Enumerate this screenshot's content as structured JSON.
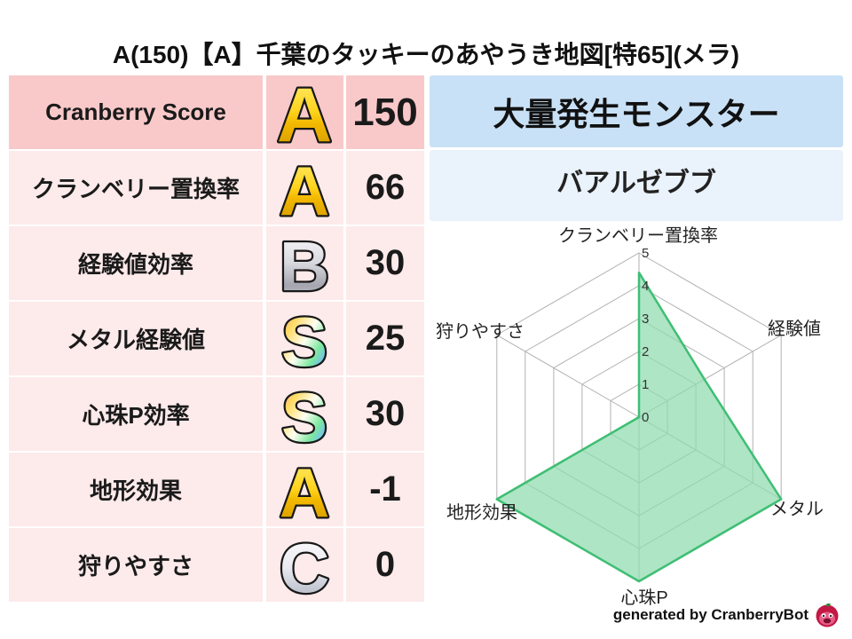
{
  "title": "A(150)【A】千葉のタッキーのあやうき地図[特65](メラ)",
  "stats_table": {
    "rows": [
      {
        "label": "Cranberry Score",
        "grade": "A",
        "grade_style": "gold",
        "value": "150"
      },
      {
        "label": "クランベリー置換率",
        "grade": "A",
        "grade_style": "gold",
        "value": "66"
      },
      {
        "label": "経験値効率",
        "grade": "B",
        "grade_style": "silver",
        "value": "30"
      },
      {
        "label": "メタル経験値",
        "grade": "S",
        "grade_style": "rainbow",
        "value": "25"
      },
      {
        "label": "心珠P効率",
        "grade": "S",
        "grade_style": "rainbow",
        "value": "30"
      },
      {
        "label": "地形効果",
        "grade": "A",
        "grade_style": "gold",
        "value": "-1"
      },
      {
        "label": "狩りやすさ",
        "grade": "C",
        "grade_style": "silver-light",
        "value": "0"
      }
    ]
  },
  "monster_panel": {
    "header": "大量発生モンスター",
    "name": "バアルゼブブ"
  },
  "chart_data": {
    "type": "radar",
    "categories": [
      "クランベリー置換率",
      "経験値",
      "メタル",
      "心珠P",
      "地形効果",
      "狩りやすさ"
    ],
    "values": [
      4.4,
      2.3,
      5,
      5,
      5,
      0
    ],
    "ticks": [
      0,
      1,
      2,
      3,
      4,
      5
    ],
    "rmax": 5,
    "grid": true,
    "fill_color": "#8edbae",
    "fill_opacity": 0.72,
    "stroke_color": "#3fbe73",
    "grid_color": "#b3b1b1"
  },
  "footer": {
    "credit": "generated by CranberryBot",
    "logo": "cranberry-mascot-icon"
  },
  "colors": {
    "row_highlight_bg": "#f9c9ca",
    "row_bg": "#fdeaea",
    "monster_header_bg": "#c9e1f6",
    "monster_name_bg": "#eaf2fb",
    "grade_gold": "#ffd520",
    "grade_silver": "#c2c2cc",
    "text": "#111111"
  }
}
